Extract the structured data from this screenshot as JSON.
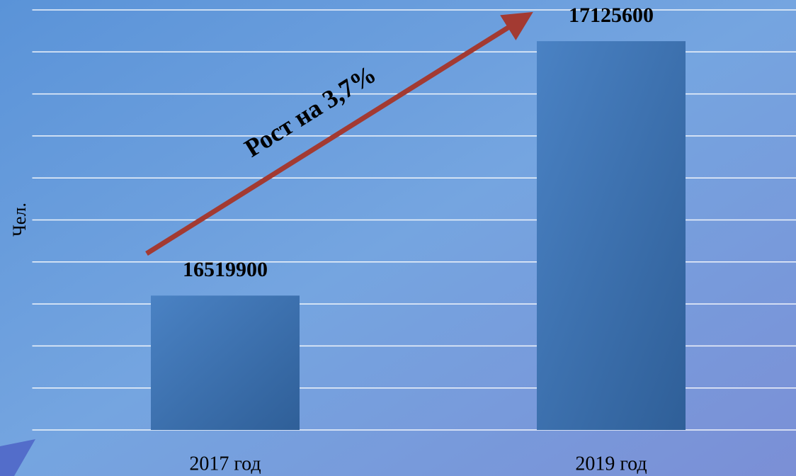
{
  "chart_data": {
    "type": "bar",
    "y_label": "Чел.",
    "categories": [
      "2017 год",
      "2019 год"
    ],
    "values": [
      16519900,
      17125600
    ],
    "color": "#3d72b4",
    "ylim": [
      16200000,
      17200000
    ],
    "yticks": [
      16200000,
      16300000,
      16400000,
      16500000,
      16600000,
      16700000,
      16800000,
      16900000,
      17000000,
      17100000,
      17200000
    ],
    "grid": true,
    "annotation": "Рост на 3,7%"
  }
}
